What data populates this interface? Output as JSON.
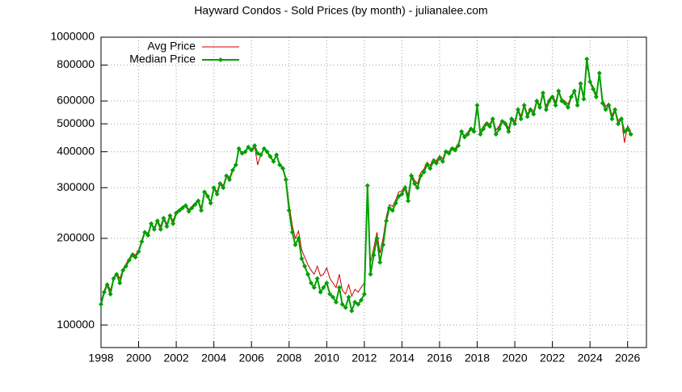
{
  "chart_data": {
    "type": "line",
    "title": "Hayward Condos - Sold Prices (by month) - julianalee.com",
    "x": [
      1998,
      1998.17,
      1998.33,
      1998.5,
      1998.67,
      1998.83,
      1999,
      1999.17,
      1999.33,
      1999.5,
      1999.67,
      1999.83,
      2000,
      2000.17,
      2000.33,
      2000.5,
      2000.67,
      2000.83,
      2001,
      2001.17,
      2001.33,
      2001.5,
      2001.67,
      2001.83,
      2002,
      2002.17,
      2002.33,
      2002.5,
      2002.67,
      2002.83,
      2003,
      2003.17,
      2003.33,
      2003.5,
      2003.67,
      2003.83,
      2004,
      2004.17,
      2004.33,
      2004.5,
      2004.67,
      2004.83,
      2005,
      2005.17,
      2005.33,
      2005.5,
      2005.67,
      2005.83,
      2006,
      2006.17,
      2006.33,
      2006.5,
      2006.67,
      2006.83,
      2007,
      2007.17,
      2007.33,
      2007.5,
      2007.67,
      2007.83,
      2008,
      2008.17,
      2008.33,
      2008.5,
      2008.67,
      2008.83,
      2009,
      2009.17,
      2009.33,
      2009.5,
      2009.67,
      2009.83,
      2010,
      2010.17,
      2010.33,
      2010.5,
      2010.67,
      2010.83,
      2011,
      2011.17,
      2011.33,
      2011.5,
      2011.67,
      2011.83,
      2012,
      2012.17,
      2012.33,
      2012.5,
      2012.67,
      2012.83,
      2013,
      2013.17,
      2013.33,
      2013.5,
      2013.67,
      2013.83,
      2014,
      2014.17,
      2014.33,
      2014.5,
      2014.67,
      2014.83,
      2015,
      2015.17,
      2015.33,
      2015.5,
      2015.67,
      2015.83,
      2016,
      2016.17,
      2016.33,
      2016.5,
      2016.67,
      2016.83,
      2017,
      2017.17,
      2017.33,
      2017.5,
      2017.67,
      2017.83,
      2018,
      2018.17,
      2018.33,
      2018.5,
      2018.67,
      2018.83,
      2019,
      2019.17,
      2019.33,
      2019.5,
      2019.67,
      2019.83,
      2020,
      2020.17,
      2020.33,
      2020.5,
      2020.67,
      2020.83,
      2021,
      2021.17,
      2021.33,
      2021.5,
      2021.67,
      2021.83,
      2022,
      2022.17,
      2022.33,
      2022.5,
      2022.67,
      2022.83,
      2023,
      2023.17,
      2023.33,
      2023.5,
      2023.67,
      2023.83,
      2024,
      2024.17,
      2024.33,
      2024.5,
      2024.67,
      2024.83,
      2025,
      2025.17,
      2025.33,
      2025.5,
      2025.67,
      2025.83,
      2026,
      2026.17
    ],
    "series": [
      {
        "name": "Avg Price",
        "color": "#cc0000",
        "values": [
          120000,
          132000,
          140000,
          132000,
          146000,
          152000,
          145000,
          156000,
          163000,
          170000,
          178000,
          175000,
          182000,
          198000,
          212000,
          208000,
          226000,
          218000,
          232000,
          220000,
          238000,
          224000,
          242000,
          230000,
          248000,
          252000,
          258000,
          262000,
          252000,
          258000,
          265000,
          272000,
          255000,
          292000,
          283000,
          268000,
          302000,
          290000,
          312000,
          305000,
          332000,
          325000,
          348000,
          362000,
          405000,
          398000,
          402000,
          412000,
          400000,
          415000,
          360000,
          392000,
          408000,
          398000,
          380000,
          372000,
          385000,
          365000,
          352000,
          325000,
          262000,
          222000,
          200000,
          212000,
          182000,
          172000,
          162000,
          155000,
          150000,
          160000,
          148000,
          150000,
          158000,
          145000,
          140000,
          135000,
          150000,
          132000,
          128000,
          138000,
          126000,
          133000,
          130000,
          135000,
          140000,
          290000,
          165000,
          185000,
          210000,
          178000,
          200000,
          238000,
          262000,
          258000,
          272000,
          290000,
          292000,
          305000,
          282000,
          335000,
          318000,
          310000,
          338000,
          348000,
          368000,
          358000,
          378000,
          372000,
          388000,
          378000,
          405000,
          400000,
          415000,
          410000,
          428000,
          462000,
          455000,
          468000,
          485000,
          478000,
          560000,
          472000,
          490000,
          508000,
          498000,
          525000,
          475000,
          492000,
          515000,
          508000,
          482000,
          528000,
          510000,
          565000,
          532000,
          585000,
          540000,
          568000,
          552000,
          605000,
          580000,
          645000,
          575000,
          610000,
          628000,
          595000,
          655000,
          610000,
          600000,
          585000,
          625000,
          655000,
          595000,
          690000,
          620000,
          800000,
          705000,
          672000,
          632000,
          740000,
          605000,
          575000,
          590000,
          535000,
          565000,
          512000,
          528000,
          430000,
          492000,
          470000
        ]
      },
      {
        "name": "Median Price",
        "color": "#00a000",
        "values": [
          118000,
          130000,
          138000,
          128000,
          145000,
          150000,
          140000,
          155000,
          160000,
          168000,
          175000,
          172000,
          180000,
          195000,
          210000,
          205000,
          225000,
          215000,
          230000,
          215000,
          235000,
          220000,
          240000,
          225000,
          245000,
          250000,
          255000,
          260000,
          248000,
          255000,
          262000,
          270000,
          250000,
          290000,
          280000,
          265000,
          300000,
          285000,
          310000,
          300000,
          330000,
          320000,
          345000,
          360000,
          410000,
          395000,
          400000,
          415000,
          405000,
          420000,
          395000,
          390000,
          410000,
          400000,
          385000,
          370000,
          390000,
          360000,
          350000,
          320000,
          250000,
          210000,
          190000,
          200000,
          170000,
          160000,
          150000,
          140000,
          135000,
          145000,
          130000,
          135000,
          140000,
          128000,
          125000,
          120000,
          135000,
          118000,
          115000,
          125000,
          112000,
          120000,
          118000,
          122000,
          128000,
          305000,
          150000,
          175000,
          200000,
          165000,
          190000,
          230000,
          255000,
          250000,
          265000,
          280000,
          285000,
          300000,
          270000,
          330000,
          310000,
          300000,
          330000,
          340000,
          360000,
          350000,
          370000,
          365000,
          380000,
          370000,
          400000,
          395000,
          410000,
          405000,
          420000,
          470000,
          450000,
          460000,
          480000,
          470000,
          580000,
          460000,
          480000,
          500000,
          490000,
          520000,
          460000,
          480000,
          510000,
          500000,
          470000,
          520000,
          500000,
          560000,
          520000,
          580000,
          530000,
          560000,
          540000,
          600000,
          570000,
          640000,
          560000,
          600000,
          620000,
          580000,
          650000,
          600000,
          590000,
          570000,
          620000,
          650000,
          580000,
          690000,
          610000,
          840000,
          700000,
          660000,
          620000,
          750000,
          590000,
          560000,
          580000,
          520000,
          560000,
          500000,
          520000,
          470000,
          480000,
          460000
        ]
      }
    ],
    "xlim": [
      1998,
      2027
    ],
    "xticks": [
      1998,
      2000,
      2002,
      2004,
      2006,
      2008,
      2010,
      2012,
      2014,
      2016,
      2018,
      2020,
      2022,
      2024,
      2026
    ],
    "ylim": [
      83500,
      1000000
    ],
    "yticks": [
      100000,
      200000,
      300000,
      400000,
      500000,
      600000,
      800000,
      1000000
    ],
    "log_y": true,
    "grid": true,
    "legend": "top-left"
  }
}
